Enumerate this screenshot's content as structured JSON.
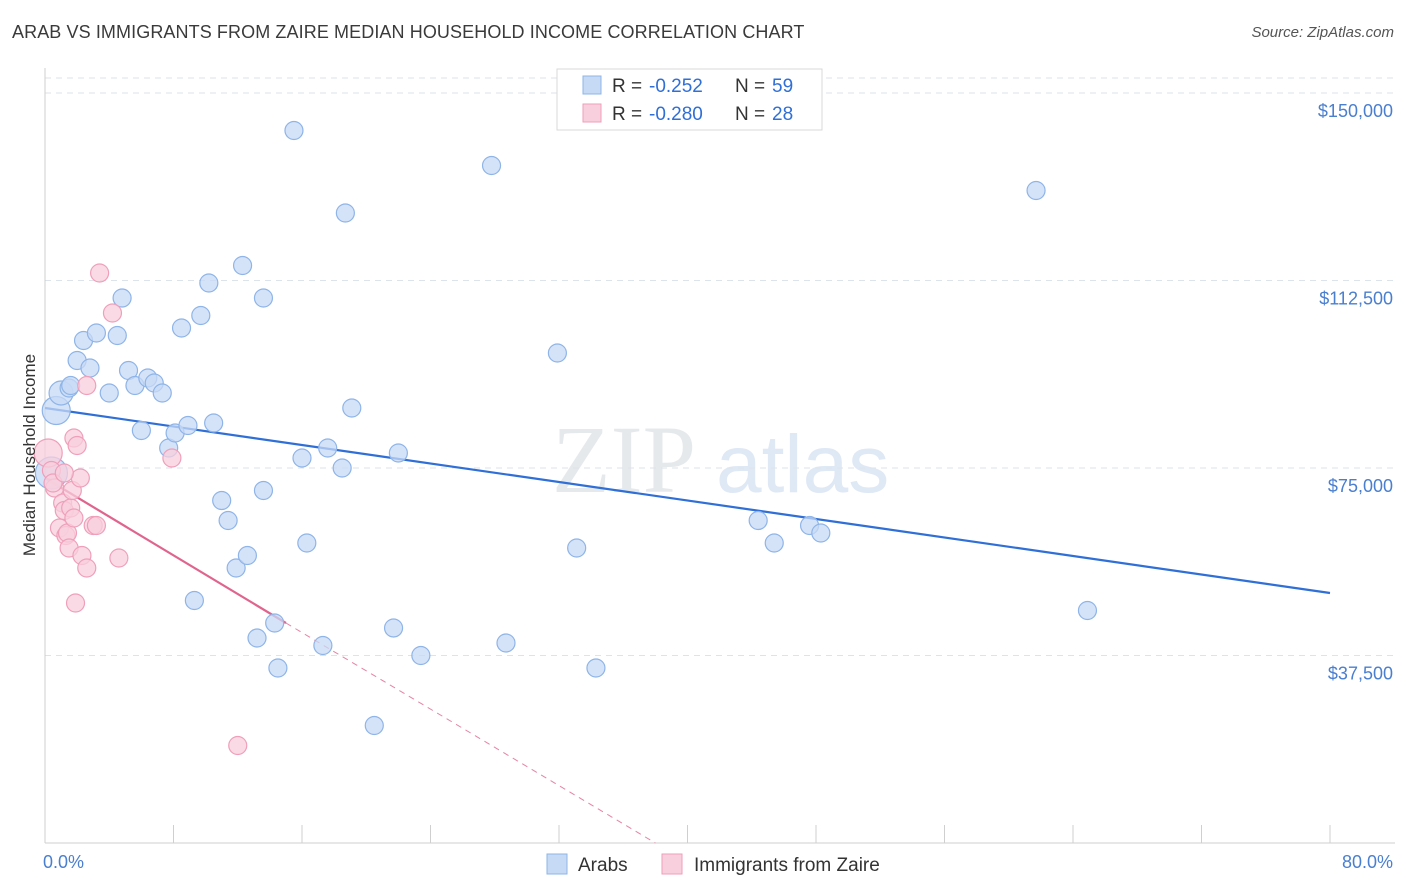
{
  "header": {
    "title": "ARAB VS IMMIGRANTS FROM ZAIRE MEDIAN HOUSEHOLD INCOME CORRELATION CHART",
    "source": "Source: ZipAtlas.com"
  },
  "watermark": {
    "zip": "ZIP",
    "atlas": "atlas"
  },
  "legend": {
    "r_label": "R =",
    "n_label": "N =",
    "items": [
      {
        "r": "-0.252",
        "n": "59"
      },
      {
        "r": "-0.280",
        "n": "28"
      }
    ]
  },
  "colors": {
    "arabs_fill": "#c7daf5",
    "arabs_stroke": "#8eb4e8",
    "arabs_line": "#2f6fd6",
    "zaire_fill": "#f8cfdc",
    "zaire_stroke": "#ef9fba",
    "zaire_line": "#e0648e",
    "grid": "#dde3ea",
    "tick_text": "#4a7fd0"
  },
  "chart_data": {
    "type": "scatter",
    "title": "ARAB VS IMMIGRANTS FROM ZAIRE MEDIAN HOUSEHOLD INCOME CORRELATION CHART",
    "xlabel": "",
    "ylabel": "Median Household Income",
    "xlim": [
      0,
      80
    ],
    "ylim": [
      0,
      153000
    ],
    "x_tick_labels": [
      "0.0%",
      "80.0%"
    ],
    "y_ticks": [
      37500,
      75000,
      112500,
      150000
    ],
    "y_tick_labels": [
      "$37,500",
      "$75,000",
      "$112,500",
      "$150,000"
    ],
    "legend_position": "bottom",
    "series": [
      {
        "name": "Arabs",
        "r": -0.252,
        "n": 59,
        "trend": {
          "x": [
            0,
            80
          ],
          "y": [
            87000,
            50000
          ]
        },
        "points": [
          {
            "x": 0.4,
            "y": 74000,
            "s": 16
          },
          {
            "x": 0.7,
            "y": 86500,
            "s": 14
          },
          {
            "x": 1.0,
            "y": 90000,
            "s": 12
          },
          {
            "x": 1.5,
            "y": 91000,
            "s": 9
          },
          {
            "x": 2.0,
            "y": 96500,
            "s": 9
          },
          {
            "x": 2.4,
            "y": 100500,
            "s": 9
          },
          {
            "x": 2.8,
            "y": 95000,
            "s": 9
          },
          {
            "x": 3.2,
            "y": 102000,
            "s": 9
          },
          {
            "x": 4.0,
            "y": 90000,
            "s": 9
          },
          {
            "x": 4.5,
            "y": 101500,
            "s": 9
          },
          {
            "x": 4.8,
            "y": 109000,
            "s": 9
          },
          {
            "x": 5.2,
            "y": 94500,
            "s": 9
          },
          {
            "x": 5.6,
            "y": 91500,
            "s": 9
          },
          {
            "x": 6.0,
            "y": 82500,
            "s": 9
          },
          {
            "x": 6.4,
            "y": 93000,
            "s": 9
          },
          {
            "x": 6.8,
            "y": 92000,
            "s": 9
          },
          {
            "x": 7.3,
            "y": 90000,
            "s": 9
          },
          {
            "x": 7.7,
            "y": 79000,
            "s": 9
          },
          {
            "x": 8.1,
            "y": 82000,
            "s": 9
          },
          {
            "x": 8.5,
            "y": 103000,
            "s": 9
          },
          {
            "x": 8.9,
            "y": 83500,
            "s": 9
          },
          {
            "x": 9.3,
            "y": 48500,
            "s": 9
          },
          {
            "x": 9.7,
            "y": 105500,
            "s": 9
          },
          {
            "x": 10.2,
            "y": 112000,
            "s": 9
          },
          {
            "x": 10.5,
            "y": 84000,
            "s": 9
          },
          {
            "x": 11.0,
            "y": 68500,
            "s": 9
          },
          {
            "x": 11.4,
            "y": 64500,
            "s": 9
          },
          {
            "x": 11.9,
            "y": 55000,
            "s": 9
          },
          {
            "x": 12.3,
            "y": 115500,
            "s": 9
          },
          {
            "x": 12.6,
            "y": 57500,
            "s": 9
          },
          {
            "x": 13.2,
            "y": 41000,
            "s": 9
          },
          {
            "x": 13.6,
            "y": 70500,
            "s": 9
          },
          {
            "x": 13.6,
            "y": 109000,
            "s": 9
          },
          {
            "x": 14.3,
            "y": 44000,
            "s": 9
          },
          {
            "x": 14.5,
            "y": 35000,
            "s": 9
          },
          {
            "x": 15.5,
            "y": 142500,
            "s": 9
          },
          {
            "x": 16.0,
            "y": 77000,
            "s": 9
          },
          {
            "x": 16.3,
            "y": 60000,
            "s": 9
          },
          {
            "x": 17.3,
            "y": 39500,
            "s": 9
          },
          {
            "x": 17.6,
            "y": 79000,
            "s": 9
          },
          {
            "x": 18.5,
            "y": 75000,
            "s": 9
          },
          {
            "x": 18.7,
            "y": 126000,
            "s": 9
          },
          {
            "x": 19.1,
            "y": 87000,
            "s": 9
          },
          {
            "x": 20.5,
            "y": 23500,
            "s": 9
          },
          {
            "x": 21.7,
            "y": 43000,
            "s": 9
          },
          {
            "x": 22.0,
            "y": 78000,
            "s": 9
          },
          {
            "x": 23.4,
            "y": 37500,
            "s": 9
          },
          {
            "x": 27.8,
            "y": 135500,
            "s": 9
          },
          {
            "x": 28.7,
            "y": 40000,
            "s": 9
          },
          {
            "x": 31.9,
            "y": 98000,
            "s": 9
          },
          {
            "x": 33.1,
            "y": 59000,
            "s": 9
          },
          {
            "x": 34.3,
            "y": 35000,
            "s": 9
          },
          {
            "x": 44.4,
            "y": 64500,
            "s": 9
          },
          {
            "x": 45.4,
            "y": 60000,
            "s": 9
          },
          {
            "x": 47.6,
            "y": 63500,
            "s": 9
          },
          {
            "x": 48.3,
            "y": 62000,
            "s": 9
          },
          {
            "x": 61.7,
            "y": 130500,
            "s": 9
          },
          {
            "x": 64.9,
            "y": 46500,
            "s": 9
          },
          {
            "x": 1.6,
            "y": 91500,
            "s": 9
          }
        ]
      },
      {
        "name": "Immigrants from Zaire",
        "r": -0.28,
        "n": 28,
        "trend": {
          "x": [
            0,
            15
          ],
          "y": [
            73000,
            44000
          ]
        },
        "trend_dashed": {
          "x": [
            15,
            38
          ],
          "y": [
            44000,
            0
          ]
        },
        "points": [
          {
            "x": 0.2,
            "y": 78000,
            "s": 14
          },
          {
            "x": 0.4,
            "y": 74500,
            "s": 9
          },
          {
            "x": 0.6,
            "y": 71000,
            "s": 9
          },
          {
            "x": 0.9,
            "y": 63000,
            "s": 9
          },
          {
            "x": 1.1,
            "y": 68000,
            "s": 9
          },
          {
            "x": 1.2,
            "y": 66500,
            "s": 9
          },
          {
            "x": 1.3,
            "y": 61500,
            "s": 9
          },
          {
            "x": 1.4,
            "y": 62000,
            "s": 9
          },
          {
            "x": 1.5,
            "y": 59000,
            "s": 9
          },
          {
            "x": 1.6,
            "y": 67000,
            "s": 9
          },
          {
            "x": 1.7,
            "y": 70500,
            "s": 9
          },
          {
            "x": 1.8,
            "y": 65000,
            "s": 9
          },
          {
            "x": 1.8,
            "y": 81000,
            "s": 9
          },
          {
            "x": 1.9,
            "y": 48000,
            "s": 9
          },
          {
            "x": 2.0,
            "y": 79500,
            "s": 9
          },
          {
            "x": 2.2,
            "y": 73000,
            "s": 9
          },
          {
            "x": 2.3,
            "y": 57500,
            "s": 9
          },
          {
            "x": 2.6,
            "y": 55000,
            "s": 9
          },
          {
            "x": 2.6,
            "y": 91500,
            "s": 9
          },
          {
            "x": 3.0,
            "y": 63500,
            "s": 9
          },
          {
            "x": 3.2,
            "y": 63500,
            "s": 9
          },
          {
            "x": 3.4,
            "y": 114000,
            "s": 9
          },
          {
            "x": 4.2,
            "y": 106000,
            "s": 9
          },
          {
            "x": 4.6,
            "y": 57000,
            "s": 9
          },
          {
            "x": 7.9,
            "y": 77000,
            "s": 9
          },
          {
            "x": 12.0,
            "y": 19500,
            "s": 9
          },
          {
            "x": 0.5,
            "y": 72000,
            "s": 9
          },
          {
            "x": 1.2,
            "y": 74000,
            "s": 9
          }
        ]
      }
    ]
  },
  "bottom_legend": {
    "items": [
      "Arabs",
      "Immigrants from Zaire"
    ]
  }
}
